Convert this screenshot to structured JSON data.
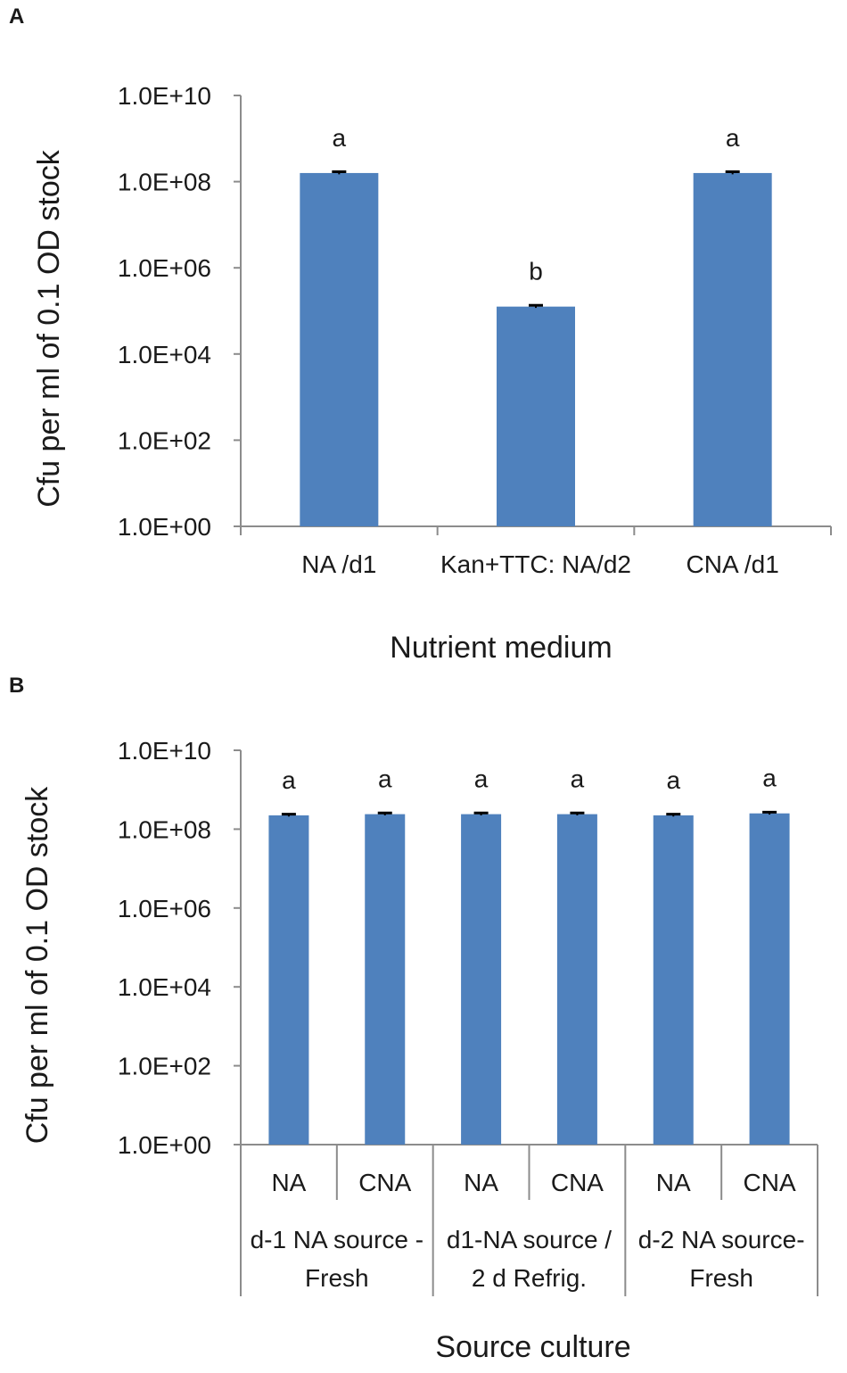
{
  "chart_data": [
    {
      "panel": "A",
      "type": "bar",
      "scale": "log",
      "ylabel": "Cfu per ml of 0.1 OD stock",
      "xlabel": "Nutrient medium",
      "yticks": [
        "1.0E+00",
        "1.0E+02",
        "1.0E+04",
        "1.0E+06",
        "1.0E+08",
        "1.0E+10"
      ],
      "ylim_log10": [
        0,
        10
      ],
      "categories": [
        "NA /d1",
        "Kan+TTC: NA/d2",
        "CNA /d1"
      ],
      "values_log10": [
        8.2,
        5.1,
        8.2
      ],
      "error_log10": [
        0.03,
        0.03,
        0.03
      ],
      "significance": [
        "a",
        "b",
        "a"
      ],
      "color": "#4f81bd"
    },
    {
      "panel": "B",
      "type": "bar",
      "scale": "log",
      "ylabel": "Cfu per ml of 0.1 OD stock",
      "xlabel": "Source culture",
      "yticks": [
        "1.0E+00",
        "1.0E+02",
        "1.0E+04",
        "1.0E+06",
        "1.0E+08",
        "1.0E+10"
      ],
      "ylim_log10": [
        0,
        10
      ],
      "categories": [
        "NA",
        "CNA",
        "NA",
        "CNA",
        "NA",
        "CNA"
      ],
      "groups": [
        {
          "lines": [
            "d-1 NA source -",
            "Fresh"
          ]
        },
        {
          "lines": [
            "d1-NA source  /",
            "2 d Refrig."
          ]
        },
        {
          "lines": [
            "d-2 NA source-",
            "Fresh"
          ]
        }
      ],
      "values_log10": [
        8.35,
        8.38,
        8.38,
        8.38,
        8.35,
        8.4
      ],
      "error_log10": [
        0.03,
        0.03,
        0.03,
        0.03,
        0.03,
        0.03
      ],
      "significance": [
        "a",
        "a",
        "a",
        "a",
        "a",
        "a"
      ],
      "color": "#4f81bd"
    }
  ]
}
